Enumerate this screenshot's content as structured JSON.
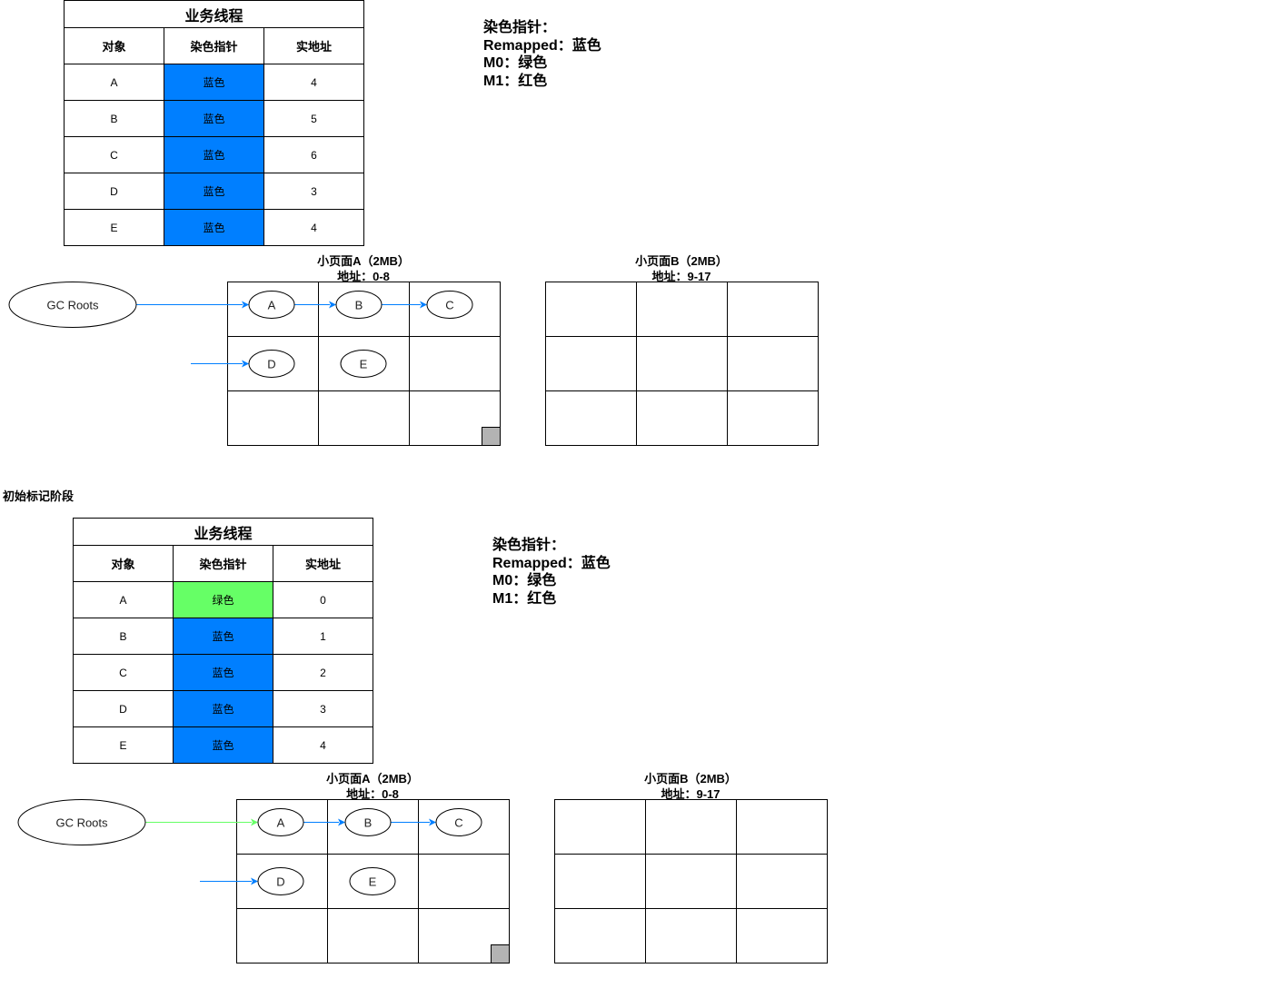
{
  "stage_label": "初始标记阶段",
  "colors": {
    "blue": "#007FFF",
    "green": "#66FF66",
    "gray": "#B3B3B3"
  },
  "sections": [
    {
      "table": {
        "title": "业务线程",
        "headers": [
          "对象",
          "染色指针",
          "实地址"
        ],
        "rows": [
          {
            "obj": "A",
            "color": "蓝色",
            "color_key": "blue",
            "addr": "4"
          },
          {
            "obj": "B",
            "color": "蓝色",
            "color_key": "blue",
            "addr": "5"
          },
          {
            "obj": "C",
            "color": "蓝色",
            "color_key": "blue",
            "addr": "6"
          },
          {
            "obj": "D",
            "color": "蓝色",
            "color_key": "blue",
            "addr": "3"
          },
          {
            "obj": "E",
            "color": "蓝色",
            "color_key": "blue",
            "addr": "4"
          }
        ]
      },
      "legend": [
        "染色指针：",
        "Remapped：蓝色",
        "M0：绿色",
        "M1：红色"
      ],
      "page_a": {
        "title": "小页面A（2MB）",
        "addr": "地址：0-8"
      },
      "page_b": {
        "title": "小页面B（2MB）",
        "addr": "地址：9-17"
      },
      "gc_roots": "GC Roots",
      "nodes": [
        "A",
        "B",
        "C",
        "D",
        "E"
      ],
      "root_arrow_color": "blue"
    },
    {
      "table": {
        "title": "业务线程",
        "headers": [
          "对象",
          "染色指针",
          "实地址"
        ],
        "rows": [
          {
            "obj": "A",
            "color": "绿色",
            "color_key": "green",
            "addr": "0"
          },
          {
            "obj": "B",
            "color": "蓝色",
            "color_key": "blue",
            "addr": "1"
          },
          {
            "obj": "C",
            "color": "蓝色",
            "color_key": "blue",
            "addr": "2"
          },
          {
            "obj": "D",
            "color": "蓝色",
            "color_key": "blue",
            "addr": "3"
          },
          {
            "obj": "E",
            "color": "蓝色",
            "color_key": "blue",
            "addr": "4"
          }
        ]
      },
      "legend": [
        "染色指针：",
        "Remapped：蓝色",
        "M0：绿色",
        "M1：红色"
      ],
      "page_a": {
        "title": "小页面A（2MB）",
        "addr": "地址：0-8"
      },
      "page_b": {
        "title": "小页面B（2MB）",
        "addr": "地址：9-17"
      },
      "gc_roots": "GC Roots",
      "nodes": [
        "A",
        "B",
        "C",
        "D",
        "E"
      ],
      "root_arrow_color": "green"
    }
  ]
}
